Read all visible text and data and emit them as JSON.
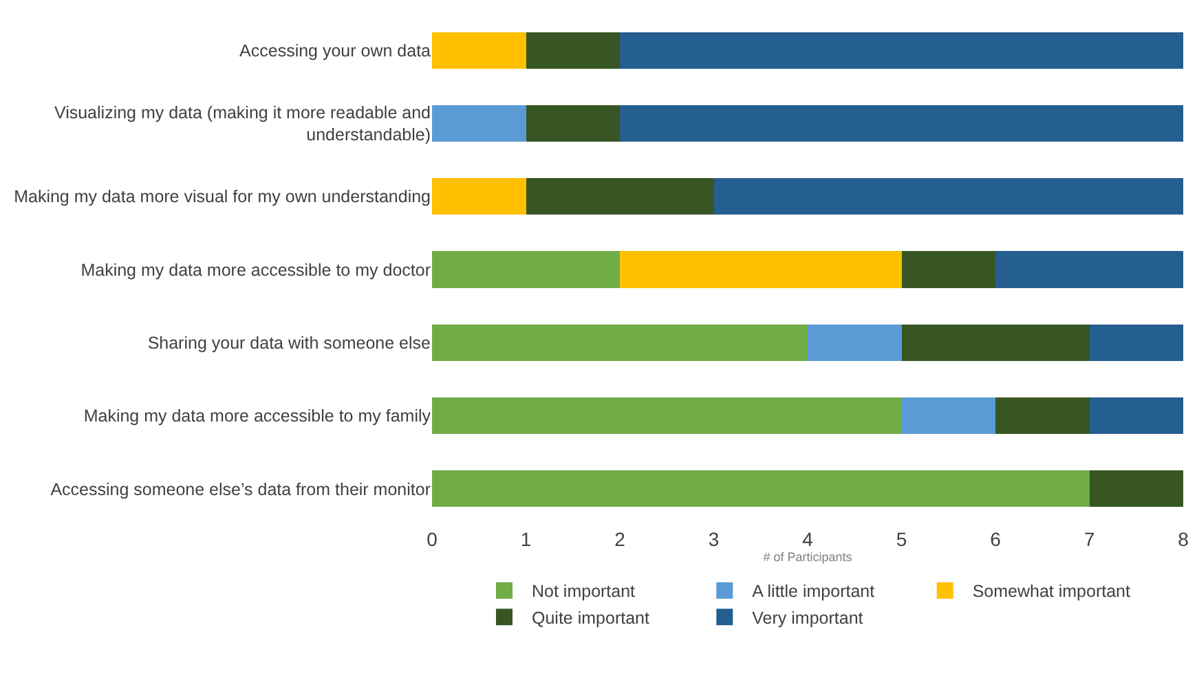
{
  "chart_data": {
    "type": "bar",
    "orientation": "horizontal",
    "stacked": true,
    "xlabel": "# of Participants",
    "categories": [
      "Accessing your own data",
      "Visualizing my data (making it more readable and understandable)",
      "Making my data more visual for my own understanding",
      "Making my data more accessible to my doctor",
      "Sharing your data with someone else",
      "Making my data more accessible to my family",
      "Accessing someone else’s data from their monitor"
    ],
    "series": [
      {
        "name": "Not important",
        "color": "#70ad47",
        "values": [
          null,
          null,
          null,
          2,
          4,
          5,
          7
        ]
      },
      {
        "name": "A little important",
        "color": "#5b9bd5",
        "values": [
          null,
          1,
          null,
          null,
          1,
          1,
          null
        ]
      },
      {
        "name": "Somewhat important",
        "color": "#ffc000",
        "values": [
          1,
          null,
          1,
          3,
          null,
          null,
          null
        ]
      },
      {
        "name": "Quite important",
        "color": "#375623",
        "values": [
          1,
          1,
          2,
          1,
          2,
          1,
          1
        ]
      },
      {
        "name": "Very important",
        "color": "#255e91",
        "values": [
          6,
          6,
          5,
          2,
          1,
          1,
          null
        ]
      }
    ],
    "xlim": [
      0,
      8
    ],
    "xticks": [
      0,
      1,
      2,
      3,
      4,
      5,
      6,
      7,
      8
    ],
    "grid": false,
    "legend": "bottom"
  }
}
